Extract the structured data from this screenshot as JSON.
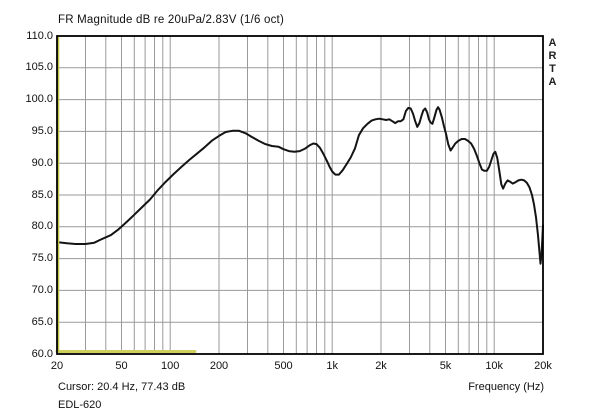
{
  "title": "FR Magnitude dB re 20uPa/2.83V (1/6 oct)",
  "watermark": "ARTA",
  "status": {
    "cursor_readout": "Cursor: 20.4 Hz, 77.43 dB",
    "signature": "EDL-620"
  },
  "colors": {
    "curve": "#141414",
    "grid": "#9a9a9a",
    "border": "#000000",
    "cursor_marker": "#c3c34a",
    "overlay_marker": "#cfcf5c",
    "background": "#ffffff"
  },
  "chart_data": {
    "type": "line",
    "title": "FR Magnitude dB re 20uPa/2.83V (1/6 oct)",
    "xlabel": "Frequency (Hz)",
    "ylabel": "",
    "x_scale": "log",
    "xlim": [
      20,
      20000
    ],
    "ylim": [
      60,
      110
    ],
    "grid": true,
    "x_ticks": [
      {
        "f": 20,
        "label": "20"
      },
      {
        "f": 50,
        "label": "50"
      },
      {
        "f": 100,
        "label": "100"
      },
      {
        "f": 200,
        "label": "200"
      },
      {
        "f": 500,
        "label": "500"
      },
      {
        "f": 1000,
        "label": "1k"
      },
      {
        "f": 2000,
        "label": "2k"
      },
      {
        "f": 5000,
        "label": "5k"
      },
      {
        "f": 10000,
        "label": "10k"
      },
      {
        "f": 20000,
        "label": "20k"
      }
    ],
    "x_gridlines": [
      30,
      40,
      50,
      60,
      70,
      80,
      90,
      100,
      200,
      300,
      400,
      500,
      600,
      700,
      800,
      900,
      1000,
      2000,
      3000,
      4000,
      5000,
      6000,
      7000,
      8000,
      9000,
      10000
    ],
    "y_ticks": [
      {
        "v": 110,
        "label": "110.0"
      },
      {
        "v": 105,
        "label": "105.0"
      },
      {
        "v": 100,
        "label": "100.0"
      },
      {
        "v": 95,
        "label": "95.0"
      },
      {
        "v": 90,
        "label": "90.0"
      },
      {
        "v": 85,
        "label": "85.0"
      },
      {
        "v": 80,
        "label": "80.0"
      },
      {
        "v": 75,
        "label": "75.0"
      },
      {
        "v": 70,
        "label": "70.0"
      },
      {
        "v": 65,
        "label": "65.0"
      },
      {
        "v": 60,
        "label": "60.0"
      }
    ],
    "cursor": {
      "freq_hz": 20.4,
      "value_db": 77.43
    },
    "series": [
      {
        "name": "magnitude-response",
        "color": "#141414",
        "width": 2,
        "points": [
          [
            20,
            77.6
          ],
          [
            23,
            77.4
          ],
          [
            26,
            77.3
          ],
          [
            30,
            77.3
          ],
          [
            34,
            77.5
          ],
          [
            38,
            78.1
          ],
          [
            43,
            78.7
          ],
          [
            48,
            79.6
          ],
          [
            54,
            80.8
          ],
          [
            60,
            81.9
          ],
          [
            67,
            83.1
          ],
          [
            75,
            84.3
          ],
          [
            84,
            85.8
          ],
          [
            94,
            87.1
          ],
          [
            105,
            88.3
          ],
          [
            117,
            89.4
          ],
          [
            131,
            90.5
          ],
          [
            146,
            91.5
          ],
          [
            163,
            92.5
          ],
          [
            182,
            93.6
          ],
          [
            200,
            94.3
          ],
          [
            220,
            94.9
          ],
          [
            242,
            95.1
          ],
          [
            266,
            95.1
          ],
          [
            292,
            94.7
          ],
          [
            320,
            94.1
          ],
          [
            352,
            93.5
          ],
          [
            386,
            93.0
          ],
          [
            424,
            92.7
          ],
          [
            465,
            92.6
          ],
          [
            500,
            92.2
          ],
          [
            540,
            91.9
          ],
          [
            583,
            91.8
          ],
          [
            630,
            91.9
          ],
          [
            680,
            92.3
          ],
          [
            724,
            92.8
          ],
          [
            764,
            93.1
          ],
          [
            800,
            93.0
          ],
          [
            840,
            92.4
          ],
          [
            885,
            91.4
          ],
          [
            930,
            90.3
          ],
          [
            965,
            89.4
          ],
          [
            1000,
            88.7
          ],
          [
            1045,
            88.2
          ],
          [
            1100,
            88.2
          ],
          [
            1160,
            88.9
          ],
          [
            1230,
            89.9
          ],
          [
            1300,
            90.9
          ],
          [
            1380,
            92.3
          ],
          [
            1460,
            94.4
          ],
          [
            1550,
            95.5
          ],
          [
            1650,
            96.2
          ],
          [
            1750,
            96.7
          ],
          [
            1850,
            96.9
          ],
          [
            1950,
            97.0
          ],
          [
            2050,
            96.9
          ],
          [
            2150,
            96.8
          ],
          [
            2250,
            96.9
          ],
          [
            2350,
            96.6
          ],
          [
            2450,
            96.3
          ],
          [
            2550,
            96.6
          ],
          [
            2650,
            96.6
          ],
          [
            2750,
            96.9
          ],
          [
            2850,
            98.2
          ],
          [
            2950,
            98.7
          ],
          [
            3050,
            98.6
          ],
          [
            3150,
            97.8
          ],
          [
            3250,
            96.6
          ],
          [
            3350,
            95.7
          ],
          [
            3450,
            96.3
          ],
          [
            3550,
            97.4
          ],
          [
            3650,
            98.3
          ],
          [
            3750,
            98.6
          ],
          [
            3850,
            98.0
          ],
          [
            3950,
            96.9
          ],
          [
            4050,
            96.4
          ],
          [
            4150,
            96.2
          ],
          [
            4250,
            97.0
          ],
          [
            4400,
            98.4
          ],
          [
            4500,
            98.8
          ],
          [
            4600,
            98.4
          ],
          [
            4750,
            97.2
          ],
          [
            4900,
            95.8
          ],
          [
            5050,
            94.5
          ],
          [
            5200,
            93.0
          ],
          [
            5380,
            92.0
          ],
          [
            5550,
            92.5
          ],
          [
            5750,
            93.1
          ],
          [
            6000,
            93.5
          ],
          [
            6300,
            93.8
          ],
          [
            6600,
            93.8
          ],
          [
            6900,
            93.5
          ],
          [
            7200,
            93.1
          ],
          [
            7500,
            92.3
          ],
          [
            7800,
            91.2
          ],
          [
            8100,
            90.0
          ],
          [
            8400,
            89.0
          ],
          [
            8700,
            88.8
          ],
          [
            9000,
            88.8
          ],
          [
            9300,
            89.4
          ],
          [
            9600,
            90.5
          ],
          [
            9900,
            91.5
          ],
          [
            10150,
            91.8
          ],
          [
            10450,
            90.8
          ],
          [
            10750,
            88.8
          ],
          [
            11050,
            86.7
          ],
          [
            11350,
            86.0
          ],
          [
            11700,
            86.8
          ],
          [
            12100,
            87.3
          ],
          [
            12500,
            87.1
          ],
          [
            13000,
            86.8
          ],
          [
            13500,
            87.0
          ],
          [
            14100,
            87.3
          ],
          [
            14700,
            87.4
          ],
          [
            15300,
            87.3
          ],
          [
            15900,
            86.9
          ],
          [
            16500,
            86.2
          ],
          [
            17100,
            85.0
          ],
          [
            17600,
            83.5
          ],
          [
            18100,
            81.5
          ],
          [
            18600,
            78.8
          ],
          [
            19000,
            76.2
          ],
          [
            19300,
            74.2
          ],
          [
            19600,
            75.8
          ],
          [
            20000,
            80.2
          ]
        ]
      },
      {
        "name": "cursor-level-overlay",
        "color": "#cfcf5c",
        "width": 3,
        "points": [
          [
            20,
            60.4
          ],
          [
            142,
            60.4
          ]
        ]
      }
    ]
  }
}
